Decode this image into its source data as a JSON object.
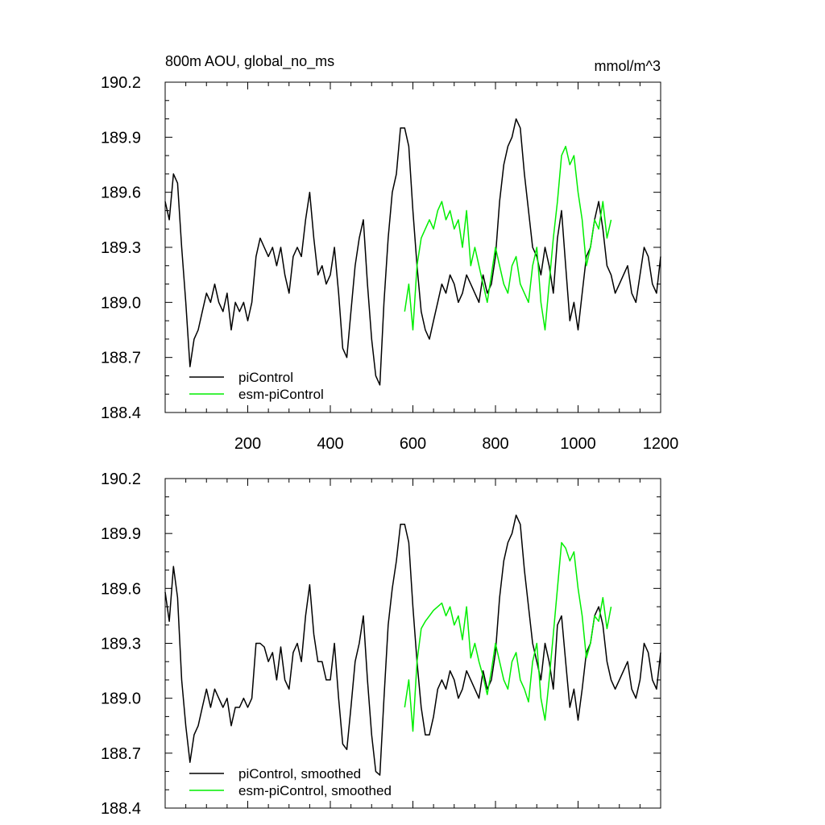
{
  "title_left": "800m AOU, global_no_ms",
  "title_right": "mmol/m^3",
  "colors": {
    "piControl": "#000000",
    "esm": "#00ee00"
  },
  "chart_data": [
    {
      "type": "line",
      "xlim": [
        0,
        1200
      ],
      "ylim": [
        188.4,
        190.2
      ],
      "yticks": [
        "190.2",
        "189.9",
        "189.6",
        "189.3",
        "189.0",
        "188.7",
        "188.4"
      ],
      "xticks": [
        "200",
        "400",
        "600",
        "800",
        "1000",
        "1200"
      ],
      "series": [
        {
          "name": "piControl",
          "color": "#000000",
          "x": [
            0,
            10,
            20,
            30,
            40,
            50,
            60,
            70,
            80,
            90,
            100,
            110,
            120,
            130,
            140,
            150,
            160,
            170,
            180,
            190,
            200,
            210,
            220,
            230,
            240,
            250,
            260,
            270,
            280,
            290,
            300,
            310,
            320,
            330,
            340,
            350,
            360,
            370,
            380,
            390,
            400,
            410,
            420,
            430,
            440,
            450,
            460,
            470,
            480,
            490,
            500,
            510,
            520,
            530,
            540,
            550,
            560,
            570,
            580,
            590,
            600,
            610,
            620,
            630,
            640,
            650,
            660,
            670,
            680,
            690,
            700,
            710,
            720,
            730,
            740,
            750,
            760,
            770,
            780,
            790,
            800,
            810,
            820,
            830,
            840,
            850,
            860,
            870,
            880,
            890,
            900,
            910,
            920,
            930,
            940,
            950,
            960,
            970,
            980,
            990,
            1000,
            1010,
            1020,
            1030,
            1040,
            1050,
            1060,
            1070,
            1080,
            1090,
            1100,
            1110,
            1120,
            1130,
            1140,
            1150,
            1160,
            1170,
            1180,
            1190,
            1200
          ],
          "values": [
            189.55,
            189.45,
            189.7,
            189.65,
            189.3,
            189.0,
            188.65,
            188.8,
            188.85,
            188.95,
            189.05,
            189.0,
            189.1,
            189.0,
            188.95,
            189.05,
            188.85,
            189.0,
            188.95,
            189.0,
            188.9,
            189.0,
            189.25,
            189.35,
            189.3,
            189.25,
            189.3,
            189.2,
            189.3,
            189.15,
            189.05,
            189.25,
            189.3,
            189.25,
            189.45,
            189.6,
            189.35,
            189.15,
            189.2,
            189.1,
            189.15,
            189.3,
            189.05,
            188.75,
            188.7,
            188.95,
            189.2,
            189.35,
            189.45,
            189.1,
            188.8,
            188.6,
            188.55,
            189.0,
            189.35,
            189.6,
            189.7,
            189.95,
            189.95,
            189.85,
            189.5,
            189.2,
            188.95,
            188.85,
            188.8,
            188.9,
            189.0,
            189.1,
            189.05,
            189.15,
            189.1,
            189.0,
            189.05,
            189.15,
            189.1,
            189.05,
            189.0,
            189.15,
            189.05,
            189.1,
            189.25,
            189.55,
            189.75,
            189.85,
            189.9,
            190.0,
            189.95,
            189.7,
            189.5,
            189.3,
            189.25,
            189.15,
            189.3,
            189.2,
            189.05,
            189.35,
            189.5,
            189.2,
            188.9,
            189.0,
            188.85,
            189.05,
            189.25,
            189.3,
            189.45,
            189.55,
            189.4,
            189.2,
            189.15,
            189.05,
            189.1,
            189.15,
            189.2,
            189.05,
            189.0,
            189.15,
            189.3,
            189.25,
            189.1,
            189.05,
            189.25
          ]
        },
        {
          "name": "esm-piControl",
          "color": "#00ee00",
          "x": [
            580,
            590,
            600,
            610,
            620,
            630,
            640,
            650,
            660,
            670,
            680,
            690,
            700,
            710,
            720,
            730,
            740,
            750,
            760,
            770,
            780,
            790,
            800,
            810,
            820,
            830,
            840,
            850,
            860,
            870,
            880,
            890,
            900,
            910,
            920,
            930,
            940,
            950,
            960,
            970,
            980,
            990,
            1000,
            1010,
            1020,
            1030,
            1040,
            1050,
            1060,
            1070,
            1080
          ],
          "values": [
            188.95,
            189.1,
            188.85,
            189.2,
            189.35,
            189.4,
            189.45,
            189.4,
            189.5,
            189.55,
            189.45,
            189.5,
            189.4,
            189.45,
            189.3,
            189.5,
            189.2,
            189.3,
            189.2,
            189.1,
            189.0,
            189.15,
            189.3,
            189.2,
            189.1,
            189.05,
            189.2,
            189.25,
            189.1,
            189.05,
            189.0,
            189.2,
            189.3,
            189.0,
            188.85,
            189.1,
            189.35,
            189.55,
            189.8,
            189.85,
            189.75,
            189.8,
            189.6,
            189.45,
            189.2,
            189.3,
            189.45,
            189.4,
            189.55,
            189.35,
            189.45
          ]
        }
      ],
      "legend": [
        "piControl",
        "esm-piControl"
      ]
    },
    {
      "type": "line",
      "xlim": [
        0,
        1200
      ],
      "ylim": [
        188.4,
        190.2
      ],
      "yticks": [
        "190.2",
        "189.9",
        "189.6",
        "189.3",
        "189.0",
        "188.7",
        "188.4"
      ],
      "series": [
        {
          "name": "piControl, smoothed",
          "color": "#000000",
          "x": [
            0,
            10,
            20,
            30,
            40,
            50,
            60,
            70,
            80,
            90,
            100,
            110,
            120,
            130,
            140,
            150,
            160,
            170,
            180,
            190,
            200,
            210,
            220,
            230,
            240,
            250,
            260,
            270,
            280,
            290,
            300,
            310,
            320,
            330,
            340,
            350,
            360,
            370,
            380,
            390,
            400,
            410,
            420,
            430,
            440,
            450,
            460,
            470,
            480,
            490,
            500,
            510,
            520,
            530,
            540,
            550,
            560,
            570,
            580,
            590,
            600,
            610,
            620,
            630,
            640,
            650,
            660,
            670,
            680,
            690,
            700,
            710,
            720,
            730,
            740,
            750,
            760,
            770,
            780,
            790,
            800,
            810,
            820,
            830,
            840,
            850,
            860,
            870,
            880,
            890,
            900,
            910,
            920,
            930,
            940,
            950,
            960,
            970,
            980,
            990,
            1000,
            1010,
            1020,
            1030,
            1040,
            1050,
            1060,
            1070,
            1080,
            1090,
            1100,
            1110,
            1120,
            1130,
            1140,
            1150,
            1160,
            1170,
            1180,
            1190,
            1200
          ],
          "values": [
            189.58,
            189.42,
            189.72,
            189.55,
            189.1,
            188.85,
            188.65,
            188.8,
            188.85,
            188.95,
            189.05,
            188.95,
            189.05,
            189.0,
            188.95,
            189.0,
            188.85,
            188.95,
            188.95,
            189.0,
            188.95,
            189.0,
            189.3,
            189.3,
            189.28,
            189.2,
            189.25,
            189.1,
            189.28,
            189.1,
            189.05,
            189.25,
            189.3,
            189.2,
            189.45,
            189.62,
            189.35,
            189.2,
            189.2,
            189.1,
            189.1,
            189.3,
            189.0,
            188.75,
            188.72,
            188.95,
            189.2,
            189.3,
            189.45,
            189.1,
            188.8,
            188.6,
            188.58,
            189.0,
            189.4,
            189.6,
            189.75,
            189.95,
            189.95,
            189.85,
            189.5,
            189.2,
            188.95,
            188.8,
            188.8,
            188.9,
            189.05,
            189.1,
            189.05,
            189.15,
            189.1,
            189.0,
            189.05,
            189.15,
            189.1,
            189.05,
            189.0,
            189.15,
            189.05,
            189.1,
            189.25,
            189.55,
            189.75,
            189.85,
            189.9,
            190.0,
            189.95,
            189.7,
            189.5,
            189.3,
            189.2,
            189.1,
            189.3,
            189.2,
            189.05,
            189.4,
            189.45,
            189.2,
            188.95,
            189.05,
            188.88,
            189.05,
            189.25,
            189.3,
            189.45,
            189.5,
            189.4,
            189.2,
            189.1,
            189.05,
            189.1,
            189.15,
            189.2,
            189.05,
            189.0,
            189.1,
            189.3,
            189.25,
            189.1,
            189.05,
            189.25
          ]
        },
        {
          "name": "esm-piControl, smoothed",
          "color": "#00ee00",
          "x": [
            580,
            590,
            600,
            610,
            620,
            630,
            640,
            650,
            660,
            670,
            680,
            690,
            700,
            710,
            720,
            730,
            740,
            750,
            760,
            770,
            780,
            790,
            800,
            810,
            820,
            830,
            840,
            850,
            860,
            870,
            880,
            890,
            900,
            910,
            920,
            930,
            940,
            950,
            960,
            970,
            980,
            990,
            1000,
            1010,
            1020,
            1030,
            1040,
            1050,
            1060,
            1070,
            1080
          ],
          "values": [
            188.95,
            189.1,
            188.82,
            189.2,
            189.38,
            189.42,
            189.45,
            189.48,
            189.5,
            189.52,
            189.45,
            189.5,
            189.4,
            189.45,
            189.32,
            189.5,
            189.22,
            189.3,
            189.2,
            189.12,
            189.02,
            189.15,
            189.3,
            189.2,
            189.1,
            189.05,
            189.2,
            189.25,
            189.1,
            189.05,
            188.98,
            189.2,
            189.3,
            189.0,
            188.88,
            189.1,
            189.35,
            189.6,
            189.85,
            189.82,
            189.75,
            189.8,
            189.6,
            189.45,
            189.22,
            189.3,
            189.45,
            189.42,
            189.55,
            189.38,
            189.5
          ]
        }
      ],
      "legend": [
        "piControl, smoothed",
        "esm-piControl, smoothed"
      ]
    }
  ]
}
